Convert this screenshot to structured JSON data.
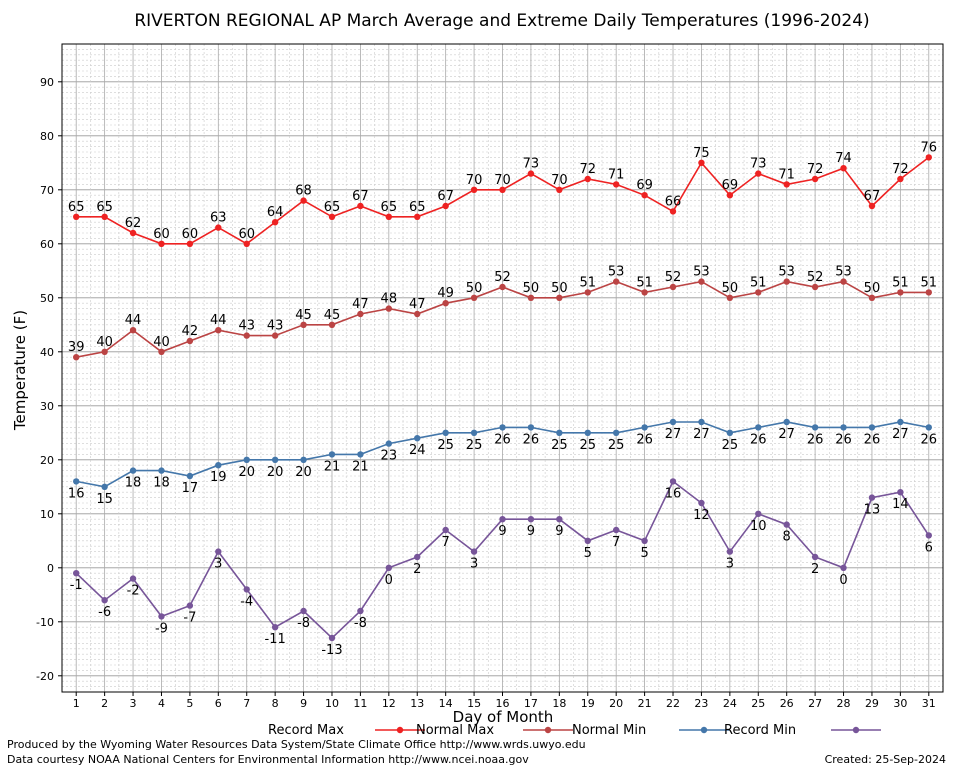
{
  "chart_data": {
    "type": "line",
    "title": "RIVERTON REGIONAL AP March Average and Extreme Daily Temperatures (1996-2024)",
    "xlabel": "Day of Month",
    "ylabel": "Temperature (F)",
    "x": [
      1,
      2,
      3,
      4,
      5,
      6,
      7,
      8,
      9,
      10,
      11,
      12,
      13,
      14,
      15,
      16,
      17,
      18,
      19,
      20,
      21,
      22,
      23,
      24,
      25,
      26,
      27,
      28,
      29,
      30,
      31
    ],
    "ylim": [
      -23,
      97
    ],
    "yticks": [
      -20,
      -10,
      0,
      10,
      20,
      30,
      40,
      50,
      60,
      70,
      80,
      90
    ],
    "grid": true,
    "legend_position": "bottom",
    "series": [
      {
        "name": "Record Max",
        "color": "#ee2222",
        "label_pos": "above",
        "values": [
          65,
          65,
          62,
          60,
          60,
          63,
          60,
          64,
          68,
          65,
          67,
          65,
          65,
          67,
          70,
          70,
          73,
          70,
          72,
          71,
          69,
          66,
          75,
          69,
          73,
          71,
          72,
          74,
          67,
          72,
          76
        ]
      },
      {
        "name": "Normal Max",
        "color": "#bb4444",
        "label_pos": "above",
        "values": [
          39,
          40,
          44,
          40,
          42,
          44,
          43,
          43,
          45,
          45,
          47,
          48,
          47,
          49,
          50,
          52,
          50,
          50,
          51,
          53,
          51,
          52,
          53,
          50,
          51,
          53,
          52,
          53,
          50,
          51,
          51
        ]
      },
      {
        "name": "Normal Min",
        "color": "#4477aa",
        "label_pos": "below",
        "values": [
          16,
          15,
          18,
          18,
          17,
          19,
          20,
          20,
          20,
          21,
          21,
          23,
          24,
          25,
          25,
          26,
          26,
          25,
          25,
          25,
          26,
          27,
          27,
          25,
          26,
          27,
          26,
          26,
          26,
          27,
          26
        ]
      },
      {
        "name": "Record Min",
        "color": "#775599",
        "label_pos": "below",
        "values": [
          -1,
          -6,
          -2,
          -9,
          -7,
          3,
          -4,
          -11,
          -8,
          -13,
          -8,
          0,
          2,
          7,
          3,
          9,
          9,
          9,
          5,
          7,
          5,
          16,
          12,
          3,
          10,
          8,
          2,
          0,
          13,
          14,
          6
        ]
      }
    ]
  },
  "footer": {
    "line1": "Produced by the Wyoming Water Resources Data System/State Climate Office http://www.wrds.uwyo.edu",
    "line2": "Data courtesy NOAA National Centers for Environmental Information http://www.ncei.noaa.gov",
    "created": "Created:  25-Sep-2024"
  }
}
